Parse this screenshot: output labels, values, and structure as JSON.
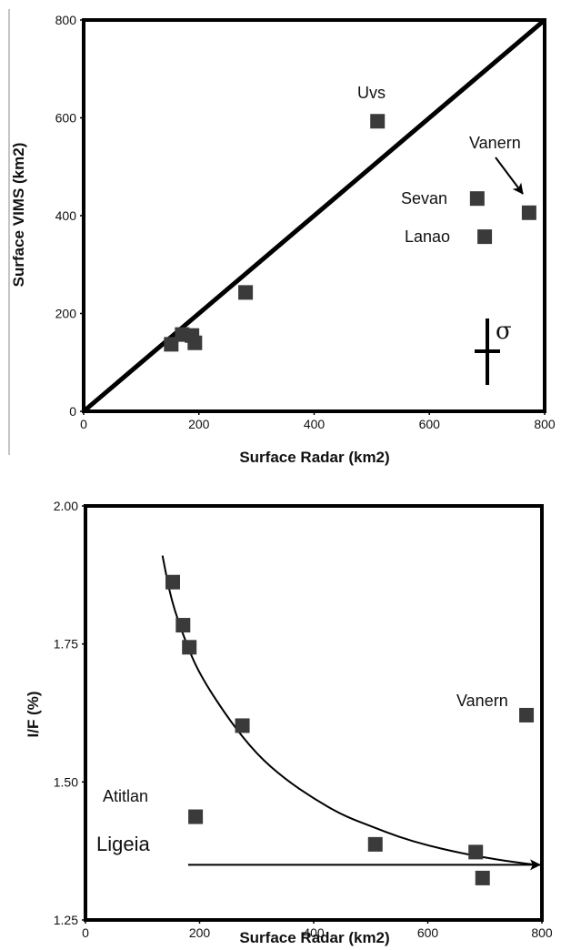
{
  "chart_data": [
    {
      "type": "scatter",
      "xlabel": "Surface Radar (km2)",
      "ylabel": "Surface VIMS (km2)",
      "xlim": [
        0,
        800
      ],
      "ylim": [
        0,
        800
      ],
      "x_ticks": [
        "0",
        "200",
        "400",
        "600",
        "800"
      ],
      "y_ticks": [
        "0",
        "200",
        "400",
        "600",
        "800"
      ],
      "grid": false,
      "reference_line": {
        "description": "1:1 line",
        "from": [
          0,
          0
        ],
        "to": [
          800,
          800
        ]
      },
      "series": [
        {
          "points": [
            {
              "x": 152,
              "y": 137
            },
            {
              "x": 171,
              "y": 157
            },
            {
              "x": 188,
              "y": 155
            },
            {
              "x": 193,
              "y": 140
            },
            {
              "x": 281,
              "y": 243
            },
            {
              "x": 510,
              "y": 593,
              "label": "Uvs"
            },
            {
              "x": 683,
              "y": 435,
              "label": "Sevan"
            },
            {
              "x": 696,
              "y": 357,
              "label": "Lanao"
            },
            {
              "x": 773,
              "y": 406,
              "label": "Vanern"
            }
          ]
        }
      ],
      "annotations": [
        {
          "text": "Uvs"
        },
        {
          "text": "Vanern"
        },
        {
          "text": "Sevan"
        },
        {
          "text": "Lanao"
        },
        {
          "text": "σ"
        }
      ]
    },
    {
      "type": "scatter",
      "xlabel": "Surface Radar (km2)",
      "ylabel": "I/F (%)",
      "xlim": [
        0,
        800
      ],
      "ylim": [
        1.25,
        2.0
      ],
      "x_ticks": [
        "0",
        "200",
        "400",
        "600",
        "800"
      ],
      "y_ticks": [
        "1.25",
        "1.50",
        "1.75",
        "2.00"
      ],
      "grid": false,
      "series": [
        {
          "points": [
            {
              "x": 153,
              "y": 1.862
            },
            {
              "x": 171,
              "y": 1.784
            },
            {
              "x": 182,
              "y": 1.744
            },
            {
              "x": 193,
              "y": 1.437,
              "label": "Atitlan"
            },
            {
              "x": 275,
              "y": 1.602
            },
            {
              "x": 508,
              "y": 1.387
            },
            {
              "x": 684,
              "y": 1.373
            },
            {
              "x": 696,
              "y": 1.326
            },
            {
              "x": 773,
              "y": 1.621,
              "label": "Vanern"
            }
          ]
        }
      ],
      "fit_curve": [
        [
          135,
          1.91
        ],
        [
          150,
          1.83
        ],
        [
          175,
          1.755
        ],
        [
          200,
          1.695
        ],
        [
          250,
          1.615
        ],
        [
          300,
          1.55
        ],
        [
          350,
          1.505
        ],
        [
          400,
          1.47
        ],
        [
          450,
          1.44
        ],
        [
          500,
          1.42
        ],
        [
          550,
          1.4
        ],
        [
          600,
          1.385
        ],
        [
          650,
          1.373
        ],
        [
          700,
          1.363
        ],
        [
          750,
          1.355
        ],
        [
          790,
          1.35
        ]
      ],
      "arrow": {
        "label": "Ligeia",
        "y": 1.35,
        "from_x": 180,
        "to_x": 800
      },
      "annotations": [
        {
          "text": "Vanern"
        },
        {
          "text": "Atitlan"
        },
        {
          "text": "Ligeia"
        }
      ]
    }
  ]
}
